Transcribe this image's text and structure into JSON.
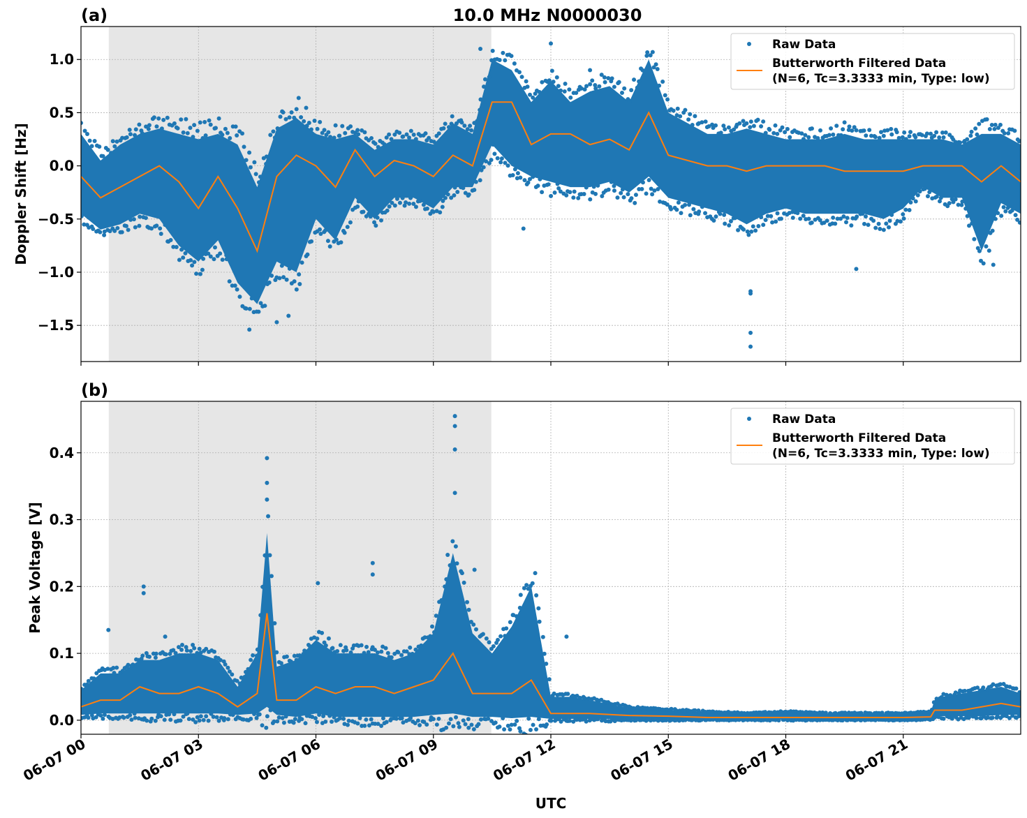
{
  "title": "10.0 MHz N0000030",
  "colors": {
    "raw": "#1f77b4",
    "filtered": "#ff7f0e",
    "night_shade": "#e6e6e6"
  },
  "x_axis": {
    "label": "UTC",
    "range_hours": [
      0,
      24
    ],
    "ticks": [
      0,
      3,
      6,
      9,
      12,
      15,
      18,
      21
    ],
    "tick_labels": [
      "06-07 00",
      "06-07 03",
      "06-07 06",
      "06-07 09",
      "06-07 12",
      "06-07 15",
      "06-07 18",
      "06-07 21"
    ],
    "grid": true
  },
  "shaded_interval_hours": [
    0.71,
    10.48
  ],
  "legend": {
    "raw": "Raw Data",
    "filtered_line1": "Butterworth Filtered Data",
    "filtered_line2": "(N=6, Tc=3.3333 min, Type: low)",
    "placement": "upper-right"
  },
  "chart_data": [
    {
      "type": "scatter+line",
      "panel_label": "(a)",
      "ylabel": "Doppler Shift [Hz]",
      "ylim": [
        -1.84,
        1.31
      ],
      "yticks": [
        -1.5,
        -1.0,
        -0.5,
        0.0,
        0.5,
        1.0
      ],
      "ytick_labels": [
        "−1.5",
        "−1.0",
        "−0.5",
        "0.0",
        "0.5",
        "1.0"
      ],
      "x_hours": [
        0,
        0.5,
        1,
        1.5,
        2,
        2.5,
        3,
        3.5,
        4,
        4.5,
        5,
        5.5,
        6,
        6.5,
        7,
        7.5,
        8,
        8.5,
        9,
        9.5,
        10,
        10.5,
        11,
        11.5,
        12,
        12.5,
        13,
        13.5,
        14,
        14.5,
        15,
        15.5,
        16,
        16.5,
        17,
        17.5,
        18,
        18.5,
        19,
        19.5,
        20,
        20.5,
        21,
        21.5,
        22,
        22.5,
        23,
        23.5,
        24
      ],
      "series": [
        {
          "name": "Butterworth Filtered Data",
          "kind": "line",
          "values": [
            -0.1,
            -0.3,
            -0.2,
            -0.1,
            0.0,
            -0.15,
            -0.4,
            -0.1,
            -0.4,
            -0.8,
            -0.1,
            0.1,
            0.0,
            -0.2,
            0.15,
            -0.1,
            0.05,
            0.0,
            -0.1,
            0.1,
            0.0,
            0.6,
            0.6,
            0.2,
            0.3,
            0.3,
            0.2,
            0.25,
            0.15,
            0.5,
            0.1,
            0.05,
            0.0,
            0.0,
            -0.05,
            0.0,
            0.0,
            0.0,
            0.0,
            -0.05,
            -0.05,
            -0.05,
            -0.05,
            0.0,
            0.0,
            0.0,
            -0.15,
            0.0,
            -0.15
          ]
        },
        {
          "name": "Raw Data",
          "kind": "scatter-envelope",
          "lower": [
            -0.45,
            -0.6,
            -0.55,
            -0.45,
            -0.5,
            -0.75,
            -0.9,
            -0.7,
            -1.1,
            -1.3,
            -0.9,
            -1.0,
            -0.5,
            -0.7,
            -0.3,
            -0.5,
            -0.3,
            -0.3,
            -0.4,
            -0.2,
            -0.2,
            0.2,
            0.0,
            -0.1,
            -0.15,
            -0.2,
            -0.2,
            -0.15,
            -0.25,
            -0.1,
            -0.3,
            -0.35,
            -0.4,
            -0.45,
            -0.55,
            -0.45,
            -0.4,
            -0.45,
            -0.45,
            -0.45,
            -0.45,
            -0.5,
            -0.4,
            -0.2,
            -0.3,
            -0.3,
            -0.8,
            -0.35,
            -0.45
          ],
          "upper": [
            0.3,
            0.05,
            0.2,
            0.3,
            0.35,
            0.3,
            0.25,
            0.3,
            0.2,
            -0.2,
            0.35,
            0.45,
            0.3,
            0.25,
            0.3,
            0.15,
            0.25,
            0.25,
            0.2,
            0.4,
            0.3,
            1.0,
            0.9,
            0.6,
            0.8,
            0.6,
            0.7,
            0.75,
            0.6,
            1.0,
            0.5,
            0.4,
            0.3,
            0.3,
            0.35,
            0.3,
            0.25,
            0.25,
            0.25,
            0.3,
            0.25,
            0.25,
            0.25,
            0.25,
            0.25,
            0.2,
            0.3,
            0.3,
            0.2
          ],
          "outliers": [
            [
              4.3,
              -1.54
            ],
            [
              5.0,
              -1.47
            ],
            [
              5.3,
              -1.41
            ],
            [
              10.2,
              1.1
            ],
            [
              12.0,
              1.15
            ],
            [
              14.6,
              1.07
            ],
            [
              13.0,
              0.9
            ],
            [
              17.1,
              -1.7
            ],
            [
              17.1,
              -1.57
            ],
            [
              17.1,
              -1.2
            ],
            [
              17.1,
              -1.18
            ],
            [
              19.8,
              -0.97
            ],
            [
              11.3,
              -0.59
            ],
            [
              23.3,
              -0.93
            ]
          ]
        }
      ]
    },
    {
      "type": "scatter+line",
      "panel_label": "(b)",
      "ylabel": "Peak Voltage [V]",
      "ylim": [
        -0.021,
        0.477
      ],
      "yticks": [
        0.0,
        0.1,
        0.2,
        0.3,
        0.4
      ],
      "ytick_labels": [
        "0.0",
        "0.1",
        "0.2",
        "0.3",
        "0.4"
      ],
      "x_hours": [
        0,
        0.5,
        1,
        1.5,
        2,
        2.5,
        3,
        3.5,
        4,
        4.5,
        4.75,
        5,
        5.5,
        6,
        6.5,
        7,
        7.5,
        8,
        8.5,
        9,
        9.5,
        10,
        10.5,
        11,
        11.5,
        12,
        12.5,
        13,
        14,
        15,
        16,
        17,
        18,
        19,
        20,
        21,
        21.7,
        21.8,
        22,
        22.5,
        23,
        23.5,
        24
      ],
      "series": [
        {
          "name": "Butterworth Filtered Data",
          "kind": "line",
          "values": [
            0.02,
            0.03,
            0.03,
            0.05,
            0.04,
            0.04,
            0.05,
            0.04,
            0.02,
            0.04,
            0.16,
            0.03,
            0.03,
            0.05,
            0.04,
            0.05,
            0.05,
            0.04,
            0.05,
            0.06,
            0.1,
            0.04,
            0.04,
            0.04,
            0.06,
            0.01,
            0.01,
            0.01,
            0.007,
            0.006,
            0.004,
            0.004,
            0.004,
            0.004,
            0.004,
            0.004,
            0.005,
            0.015,
            0.015,
            0.015,
            0.02,
            0.025,
            0.02
          ]
        },
        {
          "name": "Raw Data",
          "kind": "scatter-envelope",
          "lower": [
            0.008,
            0.01,
            0.01,
            0.01,
            0.01,
            0.01,
            0.01,
            0.01,
            0.008,
            0.01,
            0.02,
            0.008,
            0.005,
            0.01,
            0.005,
            0.005,
            0.005,
            0.005,
            0.005,
            0.008,
            0.01,
            0.005,
            0.005,
            0.003,
            0.005,
            0.002,
            0.002,
            0.002,
            0.001,
            0.001,
            0.001,
            0.001,
            0.001,
            0.001,
            0.001,
            0.001,
            0.002,
            0.005,
            0.006,
            0.006,
            0.006,
            0.008,
            0.008
          ],
          "upper": [
            0.045,
            0.07,
            0.07,
            0.09,
            0.09,
            0.1,
            0.1,
            0.09,
            0.05,
            0.1,
            0.28,
            0.08,
            0.09,
            0.12,
            0.1,
            0.1,
            0.1,
            0.09,
            0.1,
            0.13,
            0.25,
            0.13,
            0.1,
            0.14,
            0.2,
            0.035,
            0.035,
            0.03,
            0.018,
            0.015,
            0.012,
            0.01,
            0.012,
            0.01,
            0.01,
            0.01,
            0.012,
            0.03,
            0.035,
            0.04,
            0.045,
            0.05,
            0.04
          ],
          "outliers": [
            [
              0.7,
              0.135
            ],
            [
              1.6,
              0.2
            ],
            [
              1.6,
              0.19
            ],
            [
              2.15,
              0.125
            ],
            [
              4.75,
              0.392
            ],
            [
              4.75,
              0.355
            ],
            [
              4.75,
              0.33
            ],
            [
              6.05,
              0.205
            ],
            [
              7.45,
              0.235
            ],
            [
              7.45,
              0.218
            ],
            [
              9.55,
              0.455
            ],
            [
              9.55,
              0.44
            ],
            [
              9.55,
              0.405
            ],
            [
              9.55,
              0.34
            ],
            [
              10.05,
              0.225
            ],
            [
              11.6,
              0.22
            ],
            [
              12.4,
              0.125
            ]
          ]
        }
      ]
    }
  ]
}
